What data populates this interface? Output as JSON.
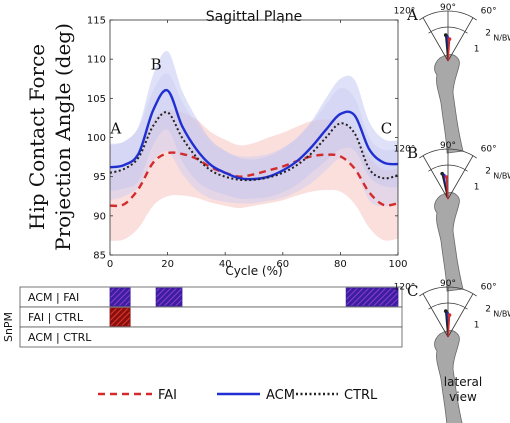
{
  "chart_data": {
    "type": "line",
    "title": "Sagittal Plane",
    "xlabel": "Cycle (%)",
    "ylabel_line1": "Hip Contact Force",
    "ylabel_line2": "Projection Angle (deg)",
    "xlim": [
      0,
      100
    ],
    "ylim": [
      85,
      115
    ],
    "xticks": [
      0,
      20,
      40,
      60,
      80,
      100
    ],
    "yticks": [
      85,
      90,
      95,
      100,
      105,
      110,
      115
    ],
    "x": [
      0,
      5,
      10,
      15,
      20,
      25,
      30,
      35,
      40,
      45,
      50,
      55,
      60,
      65,
      70,
      75,
      80,
      85,
      90,
      95,
      100
    ],
    "series": [
      {
        "name": "FAI",
        "color": "#d42a2a",
        "dash": "7,5",
        "band": "#f4b8b4",
        "values": [
          91.3,
          91.5,
          93.5,
          96.8,
          98.0,
          97.9,
          97.3,
          96.2,
          95.5,
          95.0,
          95.3,
          95.8,
          96.3,
          97.0,
          97.6,
          97.8,
          97.6,
          96.0,
          93.0,
          91.4,
          91.6
        ],
        "sd": [
          4.5,
          4.5,
          5.0,
          5.5,
          5.5,
          5.3,
          5.0,
          4.5,
          4.2,
          4.0,
          4.0,
          4.2,
          4.3,
          4.4,
          4.5,
          4.5,
          4.5,
          4.5,
          4.5,
          4.5,
          4.5
        ]
      },
      {
        "name": "ACM",
        "color": "#1f2fd1",
        "dash": "",
        "band": "#b9bdf0",
        "values": [
          96.2,
          96.5,
          98.0,
          103.5,
          106.0,
          101.5,
          98.5,
          96.5,
          95.5,
          94.8,
          94.7,
          95.0,
          95.8,
          97.0,
          98.8,
          101.0,
          103.0,
          102.8,
          98.5,
          96.8,
          96.6
        ],
        "sd": [
          3.0,
          3.0,
          3.5,
          4.5,
          5.0,
          4.5,
          4.0,
          3.2,
          2.8,
          2.6,
          2.5,
          2.6,
          2.8,
          3.0,
          3.3,
          4.0,
          4.5,
          4.5,
          3.5,
          3.0,
          3.0
        ]
      },
      {
        "name": "CTRL",
        "color": "#222222",
        "dash": "2,2.5",
        "band": "#c9cdf2",
        "values": [
          95.5,
          96.0,
          97.5,
          101.5,
          103.2,
          100.0,
          97.5,
          95.8,
          95.0,
          94.6,
          94.6,
          94.9,
          95.5,
          96.5,
          98.0,
          100.0,
          101.8,
          100.5,
          96.0,
          94.8,
          95.2
        ],
        "sd": [
          3.5,
          3.5,
          3.8,
          4.5,
          5.0,
          4.6,
          4.2,
          3.6,
          3.2,
          3.0,
          3.0,
          3.0,
          3.2,
          3.4,
          3.8,
          4.2,
          4.5,
          4.5,
          4.0,
          3.6,
          3.5
        ]
      }
    ],
    "annotations": [
      {
        "text": "A",
        "x": 2,
        "y": 100.5
      },
      {
        "text": "B",
        "x": 16,
        "y": 108.7
      },
      {
        "text": "C",
        "x": 96,
        "y": 100.5
      }
    ],
    "legend": [
      {
        "label": "FAI",
        "color": "#d42a2a",
        "dash": "7,5"
      },
      {
        "label": "ACM",
        "color": "#1f2fd1",
        "dash": ""
      },
      {
        "label": "CTRL",
        "color": "#222222",
        "dash": "2,2.5"
      }
    ],
    "grid": false,
    "spm": {
      "label": "SnPM",
      "rows": [
        {
          "label": "ACM | FAI",
          "segments": [
            [
              0,
              7
            ],
            [
              16,
              25
            ],
            [
              82,
              100
            ]
          ],
          "color": "#3b1f9e",
          "hatch": "#8e3bd6"
        },
        {
          "label": "FAI | CTRL",
          "segments": [
            [
              0,
              7
            ]
          ],
          "color": "#8a1010",
          "hatch": "#e03a2a"
        },
        {
          "label": "ACM | CTRL",
          "segments": [],
          "color": "#3b1f9e",
          "hatch": "#8e3bd6"
        }
      ]
    }
  },
  "panels": [
    {
      "label": "A",
      "angles": [
        "120°",
        "90°",
        "60°"
      ],
      "scale_top": "2",
      "scale_unit": "N/BW",
      "scale_low": "1"
    },
    {
      "label": "B",
      "angles": [
        "120°",
        "90°",
        "60°"
      ],
      "scale_top": "2",
      "scale_unit": "N/BW",
      "scale_low": "1"
    },
    {
      "label": "C",
      "angles": [
        "120°",
        "90°",
        "60°"
      ],
      "scale_top": "2",
      "scale_unit": "N/BW",
      "scale_low": "1",
      "caption_line1": "lateral",
      "caption_line2": "view"
    }
  ]
}
